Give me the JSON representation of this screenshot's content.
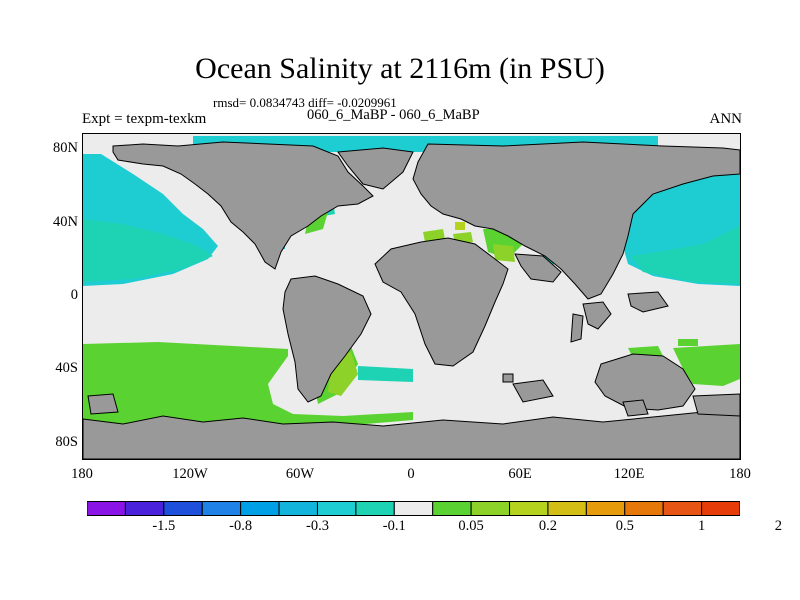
{
  "title": "Ocean Salinity at 2116m (in PSU)",
  "stats_line": "rmsd= 0.0834743 diff= -0.0209961",
  "period_line": "060_6_MaBP - 060_6_MaBP",
  "experiment": "Expt = texpm-texkm",
  "season": "ANN",
  "map": {
    "lat_labels": [
      "80N",
      "40N",
      "0",
      "40S",
      "80S"
    ],
    "lon_labels": [
      "180",
      "120W",
      "60W",
      "0",
      "60E",
      "120E",
      "180"
    ],
    "land_color": "#999999",
    "outline_color": "#000000"
  },
  "colorbar": {
    "colors": [
      "#8a14e6",
      "#4b22dc",
      "#1e50dc",
      "#1e82e6",
      "#00a0e6",
      "#12b4dc",
      "#1ecdd2",
      "#1ed2b4",
      "#ececec",
      "#5ad232",
      "#8cd228",
      "#b4d21e",
      "#d2be14",
      "#e69b0a",
      "#e6780a",
      "#e65514",
      "#e63c0a"
    ],
    "labels": [
      "-1.5",
      "-0.8",
      "-0.3",
      "-0.1",
      "0.05",
      "0.2",
      "0.5",
      "1",
      "2"
    ]
  }
}
